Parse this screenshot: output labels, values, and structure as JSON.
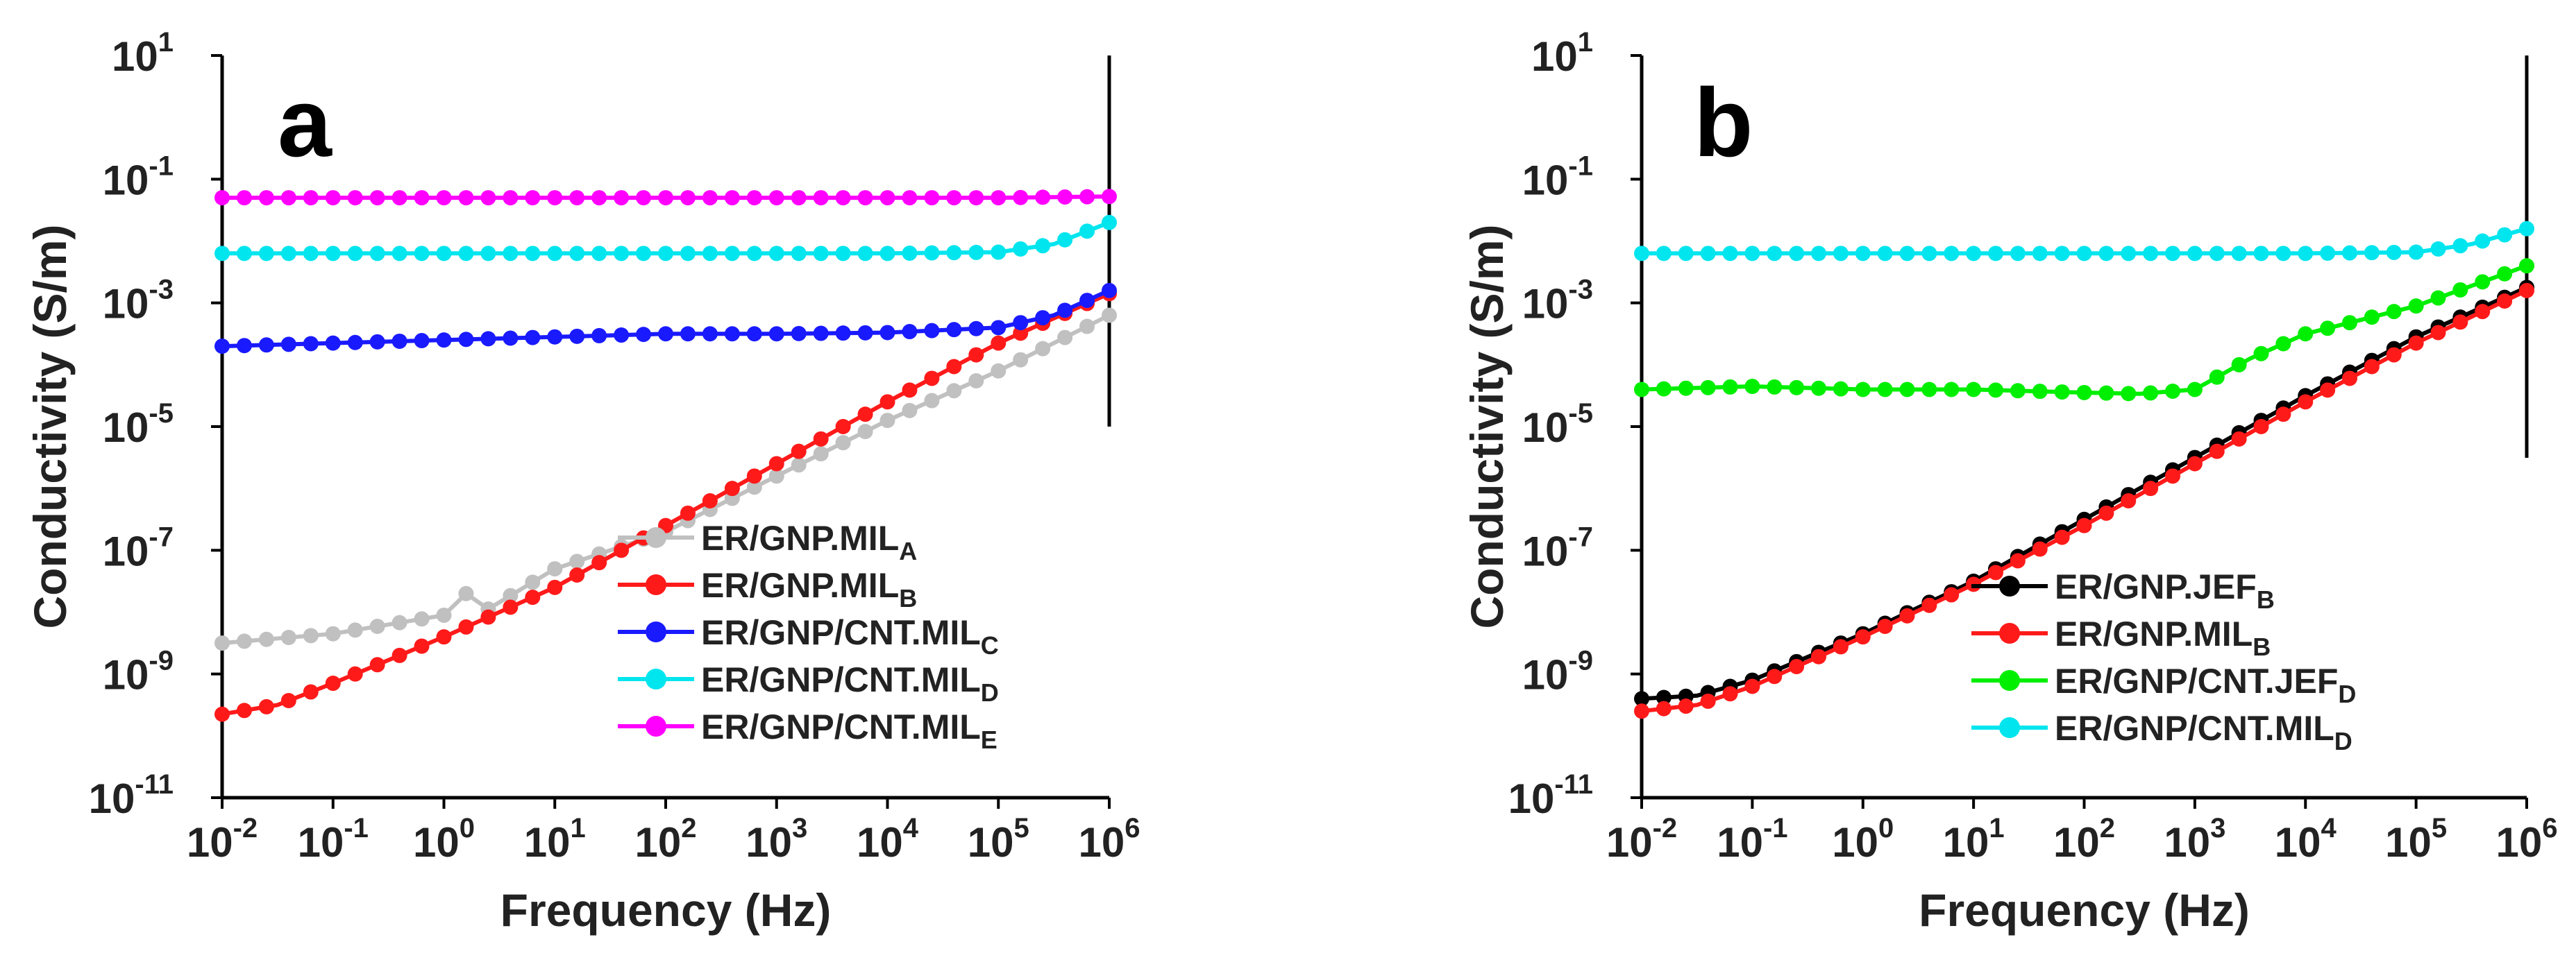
{
  "figure_title": "",
  "chart_data": [
    {
      "type": "line",
      "panel": "a",
      "title": "",
      "xlabel": "Frequency (Hz)",
      "ylabel": "Conductivity (S/m)",
      "xscale": "log",
      "yscale": "log",
      "xlim_log10": [
        -2,
        6
      ],
      "ylim_log10": [
        -11,
        1
      ],
      "xticks": [
        {
          "base": "10",
          "exp": "-2"
        },
        {
          "base": "10",
          "exp": "-1"
        },
        {
          "base": "10",
          "exp": "0"
        },
        {
          "base": "10",
          "exp": "1"
        },
        {
          "base": "10",
          "exp": "2"
        },
        {
          "base": "10",
          "exp": "3"
        },
        {
          "base": "10",
          "exp": "4"
        },
        {
          "base": "10",
          "exp": "5"
        },
        {
          "base": "10",
          "exp": "6"
        }
      ],
      "yticks": [
        {
          "base": "10",
          "exp": "1"
        },
        {
          "base": "10",
          "exp": "-1"
        },
        {
          "base": "10",
          "exp": "-3"
        },
        {
          "base": "10",
          "exp": "-5"
        },
        {
          "base": "10",
          "exp": "-7"
        },
        {
          "base": "10",
          "exp": "-9"
        },
        {
          "base": "10",
          "exp": "-11"
        }
      ],
      "grid": false,
      "legend_position": "bottom-right",
      "series": [
        {
          "name": "ER/GNP.MIL",
          "sub": "A",
          "color": "#c0c0c0",
          "x_log10": [
            -2,
            -1,
            0,
            0.2,
            0.4,
            1,
            2,
            3,
            4,
            5,
            6
          ],
          "y_log10": [
            -8.5,
            -8.35,
            -8.05,
            -7.7,
            -7.95,
            -7.3,
            -6.7,
            -5.8,
            -4.9,
            -4.1,
            -3.2
          ]
        },
        {
          "name": "ER/GNP.MIL",
          "sub": "B",
          "color": "#ff1a1a",
          "x_log10": [
            -2,
            -1.5,
            -1,
            0,
            1,
            2,
            3,
            4,
            5,
            6
          ],
          "y_log10": [
            -9.65,
            -9.5,
            -9.15,
            -8.4,
            -7.6,
            -6.6,
            -5.6,
            -4.6,
            -3.65,
            -2.85
          ]
        },
        {
          "name": "ER/GNP/CNT.MIL",
          "sub": "C",
          "color": "#1a1aff",
          "x_log10": [
            -2,
            -1,
            0,
            1,
            2,
            3,
            4,
            5,
            5.5,
            6
          ],
          "y_log10": [
            -3.7,
            -3.65,
            -3.6,
            -3.55,
            -3.5,
            -3.5,
            -3.48,
            -3.4,
            -3.2,
            -2.8
          ]
        },
        {
          "name": "ER/GNP/CNT.MIL",
          "sub": "D",
          "color": "#00e5ee",
          "x_log10": [
            -2,
            -1,
            0,
            1,
            2,
            3,
            4,
            5,
            5.5,
            6
          ],
          "y_log10": [
            -2.2,
            -2.2,
            -2.2,
            -2.2,
            -2.2,
            -2.2,
            -2.2,
            -2.18,
            -2.05,
            -1.7
          ]
        },
        {
          "name": "ER/GNP/CNT.MIL",
          "sub": "E",
          "color": "#ff00ff",
          "x_log10": [
            -2,
            -1,
            0,
            1,
            2,
            3,
            4,
            5,
            6
          ],
          "y_log10": [
            -1.3,
            -1.3,
            -1.3,
            -1.3,
            -1.3,
            -1.3,
            -1.3,
            -1.3,
            -1.28
          ]
        }
      ]
    },
    {
      "type": "line",
      "panel": "b",
      "title": "",
      "xlabel": "Frequency (Hz)",
      "ylabel": "Conductivity (S/m)",
      "xscale": "log",
      "yscale": "log",
      "xlim_log10": [
        -2,
        6
      ],
      "ylim_log10": [
        -11,
        1
      ],
      "xticks": [
        {
          "base": "10",
          "exp": "-2"
        },
        {
          "base": "10",
          "exp": "-1"
        },
        {
          "base": "10",
          "exp": "0"
        },
        {
          "base": "10",
          "exp": "1"
        },
        {
          "base": "10",
          "exp": "2"
        },
        {
          "base": "10",
          "exp": "3"
        },
        {
          "base": "10",
          "exp": "4"
        },
        {
          "base": "10",
          "exp": "5"
        },
        {
          "base": "10",
          "exp": "6"
        }
      ],
      "yticks": [
        {
          "base": "10",
          "exp": "1"
        },
        {
          "base": "10",
          "exp": "-1"
        },
        {
          "base": "10",
          "exp": "-3"
        },
        {
          "base": "10",
          "exp": "-5"
        },
        {
          "base": "10",
          "exp": "-7"
        },
        {
          "base": "10",
          "exp": "-9"
        },
        {
          "base": "10",
          "exp": "-11"
        }
      ],
      "grid": false,
      "legend_position": "bottom-right",
      "series": [
        {
          "name": "ER/GNP.JEF",
          "sub": "B",
          "color": "#000000",
          "x_log10": [
            -2,
            -1.5,
            -1,
            0,
            1,
            2,
            3,
            4,
            5,
            6
          ],
          "y_log10": [
            -9.4,
            -9.35,
            -9.1,
            -8.35,
            -7.5,
            -6.5,
            -5.5,
            -4.5,
            -3.55,
            -2.75
          ]
        },
        {
          "name": "ER/GNP.MIL",
          "sub": "B",
          "color": "#ff1a1a",
          "x_log10": [
            -2,
            -1.5,
            -1,
            0,
            1,
            2,
            3,
            4,
            5,
            6
          ],
          "y_log10": [
            -9.6,
            -9.5,
            -9.2,
            -8.4,
            -7.55,
            -6.6,
            -5.6,
            -4.6,
            -3.65,
            -2.8
          ]
        },
        {
          "name": "ER/GNP/CNT.JEF",
          "sub": "D",
          "color": "#00ee00",
          "x_log10": [
            -2,
            -1,
            0,
            1,
            2,
            2.5,
            3,
            3.5,
            4,
            5,
            6
          ],
          "y_log10": [
            -4.4,
            -4.35,
            -4.4,
            -4.4,
            -4.45,
            -4.47,
            -4.4,
            -3.9,
            -3.5,
            -3.05,
            -2.4
          ]
        },
        {
          "name": "ER/GNP/CNT.MIL",
          "sub": "D",
          "color": "#00e5ee",
          "x_log10": [
            -2,
            -1,
            0,
            1,
            2,
            3,
            4,
            5,
            5.5,
            6
          ],
          "y_log10": [
            -2.2,
            -2.2,
            -2.2,
            -2.2,
            -2.2,
            -2.2,
            -2.2,
            -2.18,
            -2.05,
            -1.8
          ]
        }
      ]
    }
  ]
}
